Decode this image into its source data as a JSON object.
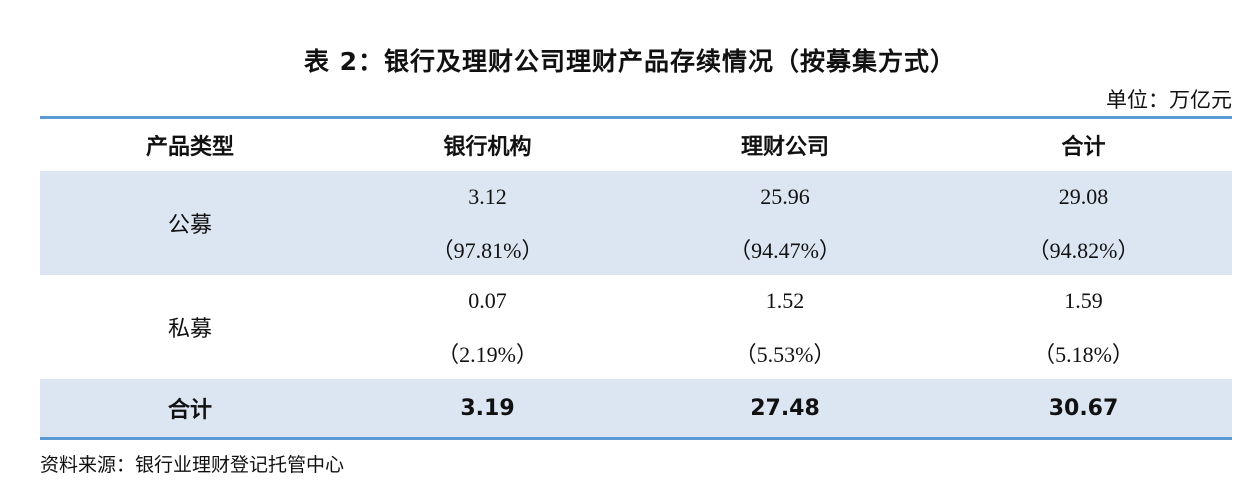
{
  "title": "表 2：银行及理财公司理财产品存续情况（按募集方式）",
  "unit": "单位：万亿元",
  "table": {
    "header": [
      "产品类型",
      "银行机构",
      "理财公司",
      "合计"
    ],
    "rows": [
      [
        "公募",
        {
          "value": "3.12",
          "share": "（97.81%）"
        },
        {
          "value": "25.96",
          "share": "（94.47%）"
        },
        {
          "value": "29.08",
          "share": "（94.82%）"
        }
      ],
      [
        "私募",
        {
          "value": "0.07",
          "share": "（2.19%）"
        },
        {
          "value": "1.52",
          "share": "（5.53%）"
        },
        {
          "value": "1.59",
          "share": "（5.18%）"
        }
      ]
    ],
    "total": [
      "合计",
      "3.19",
      "27.48",
      "30.67"
    ]
  },
  "source": "资料来源：银行业理财登记托管中心"
}
